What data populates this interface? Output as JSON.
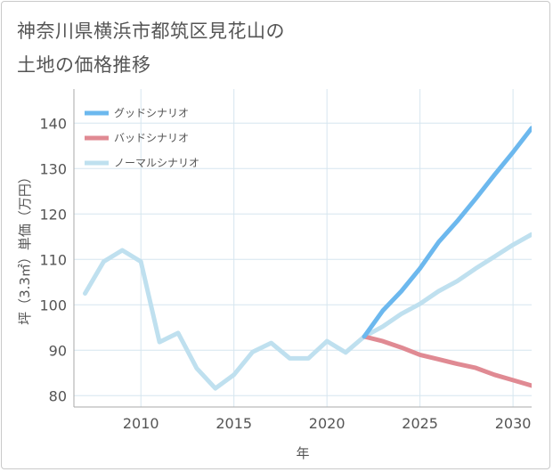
{
  "page": {
    "title_line1": "神奈川県横浜市都筑区見花山の",
    "title_line2": "土地の価格推移"
  },
  "chart_data": {
    "type": "line",
    "title": "神奈川県横浜市都筑区見花山の土地の価格推移",
    "xlabel": "年",
    "ylabel": "坪（3.3㎡）単価（万円）",
    "xlim": [
      2006.4,
      2031
    ],
    "ylim": [
      77.5,
      147.5
    ],
    "xticks": [
      2010,
      2015,
      2020,
      2025,
      2030
    ],
    "yticks": [
      80,
      90,
      100,
      110,
      120,
      130,
      140
    ],
    "grid": true,
    "legend_position": "top-left",
    "series": [
      {
        "name": "グッドシナリオ",
        "color": "#6cb8ee",
        "x": [
          2022,
          2023,
          2024,
          2025,
          2026,
          2027,
          2028,
          2029,
          2030,
          2031
        ],
        "y": [
          93.0,
          98.7,
          103.0,
          108.0,
          113.8,
          118.4,
          123.4,
          128.6,
          133.6,
          138.9
        ]
      },
      {
        "name": "バッドシナリオ",
        "color": "#e08a93",
        "x": [
          2022,
          2023,
          2024,
          2025,
          2026,
          2027,
          2028,
          2029,
          2030,
          2031
        ],
        "y": [
          93.0,
          92.0,
          90.6,
          89.0,
          88.0,
          87.0,
          86.1,
          84.6,
          83.4,
          82.2
        ]
      },
      {
        "name": "ノーマルシナリオ",
        "color": "#bfe0ef",
        "x": [
          2007,
          2008,
          2009,
          2010,
          2011,
          2012,
          2013,
          2014,
          2015,
          2016,
          2017,
          2018,
          2019,
          2020,
          2021,
          2022,
          2023,
          2024,
          2025,
          2026,
          2027,
          2028,
          2029,
          2030,
          2031
        ],
        "y": [
          102.5,
          109.5,
          112.0,
          109.5,
          91.8,
          93.8,
          86.0,
          81.6,
          84.6,
          89.6,
          91.6,
          88.2,
          88.2,
          92.0,
          89.5,
          93.0,
          95.2,
          98.0,
          100.2,
          103.0,
          105.2,
          108.0,
          110.6,
          113.2,
          115.5
        ]
      }
    ]
  }
}
